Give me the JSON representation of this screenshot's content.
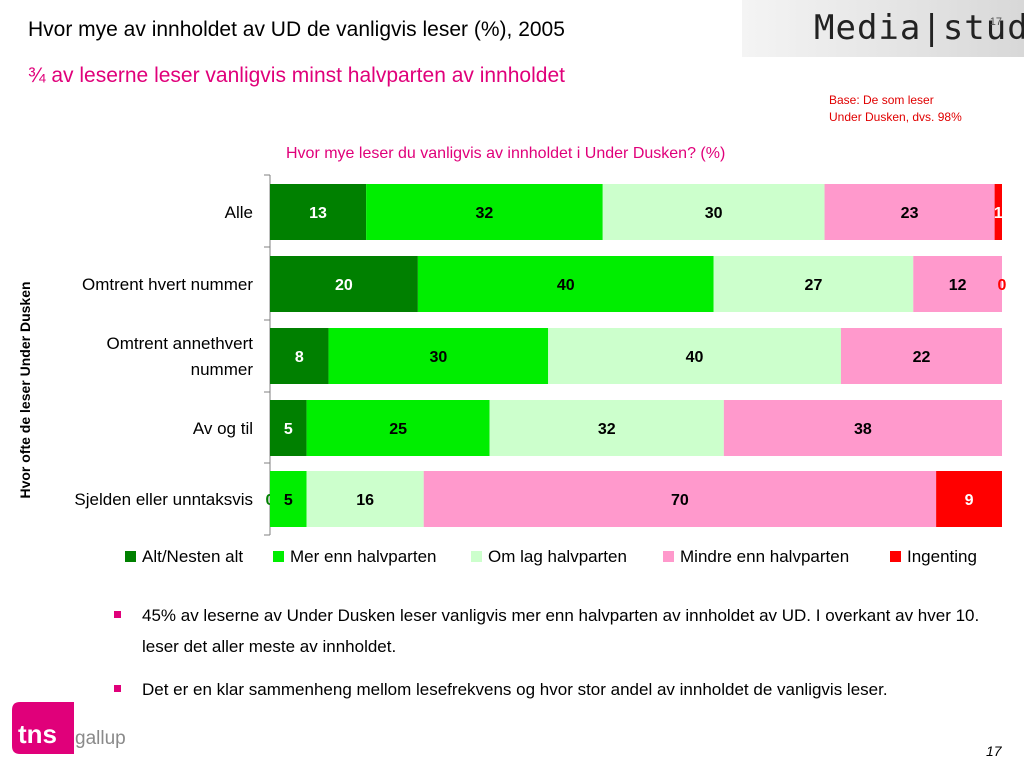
{
  "header": {
    "title": "Hvor mye av innholdet av UD de vanligvis leser (%), 2005",
    "subtitle": "¾ av leserne leser vanligvis minst halvparten av innholdet"
  },
  "brand": {
    "text": "Media|stud",
    "page_mark": "17"
  },
  "base_note": {
    "line1": "Base: De som leser",
    "line2": "Under Dusken, dvs. 98%"
  },
  "chart_data": {
    "type": "bar",
    "orientation": "horizontal-stacked",
    "title": "Hvor mye leser du vanligvis av innholdet i Under Dusken? (%)",
    "ylabel": "Hvor ofte de leser Under Dusken",
    "categories": [
      [
        "Alle"
      ],
      [
        "Omtrent hvert nummer"
      ],
      [
        "Omtrent annethvert",
        "nummer"
      ],
      [
        "Av og til"
      ],
      [
        "Sjelden eller unntaksvis"
      ]
    ],
    "series": [
      {
        "name": "Alt/Nesten alt",
        "color": "#008000",
        "label_color": "#ffffff",
        "values": [
          13,
          20,
          8,
          5,
          0
        ]
      },
      {
        "name": "Mer enn halvparten",
        "color": "#00ee00",
        "label_color": "#000000",
        "values": [
          32,
          40,
          30,
          25,
          5
        ]
      },
      {
        "name": "Om lag halvparten",
        "color": "#ccffcc",
        "label_color": "#000000",
        "values": [
          30,
          27,
          40,
          32,
          16
        ]
      },
      {
        "name": "Mindre enn halvparten",
        "color": "#ff99cc",
        "label_color": "#000000",
        "values": [
          23,
          12,
          22,
          38,
          70
        ]
      },
      {
        "name": "Ingenting",
        "color": "#ff0000",
        "label_color": "#ffffff",
        "values": [
          1,
          0,
          0,
          0,
          9
        ]
      }
    ],
    "value_labels": [
      [
        "13",
        "32",
        "30",
        "23",
        "1"
      ],
      [
        "20",
        "40",
        "27",
        "12",
        "0"
      ],
      [
        "8",
        "30",
        "40",
        "22",
        ""
      ],
      [
        "5",
        "25",
        "32",
        "38",
        ""
      ],
      [
        "0",
        "5",
        "16",
        "70",
        "9"
      ]
    ],
    "legend_position": "bottom"
  },
  "bullets": [
    "45% av leserne av Under Dusken leser vanligvis mer enn halvparten av innholdet av UD. I overkant av hver 10. leser det aller meste av innholdet.",
    "Det er en klar sammenheng mellom lesefrekvens og hvor stor andel av innholdet de vanligvis leser."
  ],
  "logo": {
    "tns": "tns",
    "gallup": "gallup"
  },
  "page_number": "17"
}
